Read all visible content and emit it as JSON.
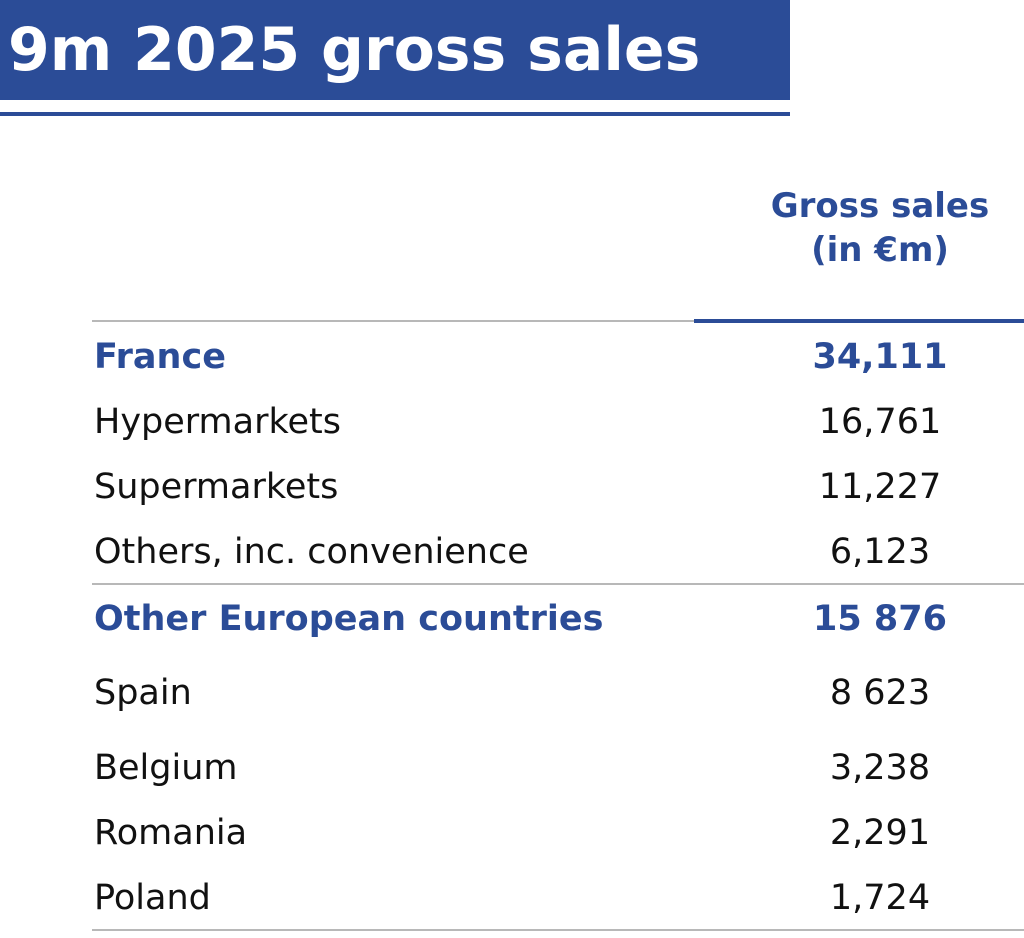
{
  "chart_data": {
    "type": "table",
    "title": "9m 2025 gross sales",
    "column_header": {
      "line1": "Gross sales",
      "line2": "(in €m)"
    },
    "rows": [
      {
        "label": "France",
        "value": "34,111",
        "group": true
      },
      {
        "label": "Hypermarkets",
        "value": "16,761",
        "group": false
      },
      {
        "label": "Supermarkets",
        "value": "11,227",
        "group": false
      },
      {
        "label": "Others, inc. convenience",
        "value": "6,123",
        "group": false
      },
      {
        "label": "Other European countries",
        "value": "15 876",
        "group": true
      },
      {
        "label": "Spain",
        "value": "8 623",
        "group": false
      },
      {
        "label": "Belgium",
        "value": "3,238",
        "group": false
      },
      {
        "label": "Romania",
        "value": "2,291",
        "group": false
      },
      {
        "label": "Poland",
        "value": "1,724",
        "group": false
      }
    ]
  },
  "colors": {
    "accent": "#2b4c97",
    "text": "#111111",
    "rule": "#b8b8b8",
    "title_text": "#ffffff"
  }
}
